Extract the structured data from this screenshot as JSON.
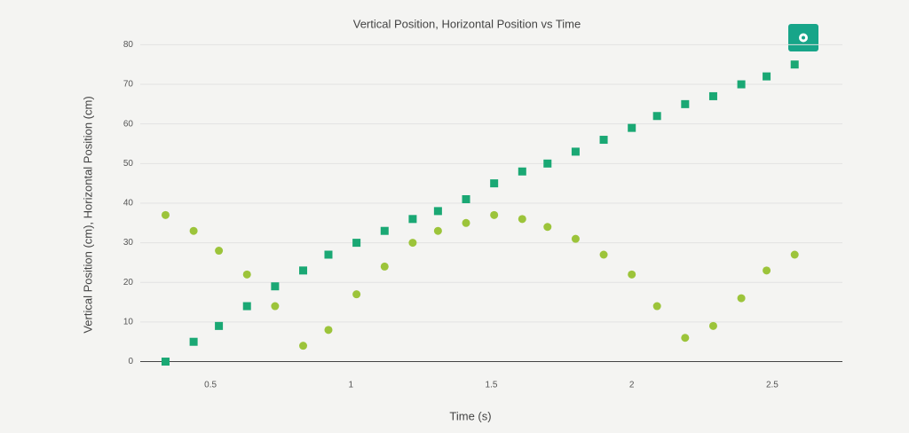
{
  "chart_data": {
    "type": "scatter",
    "title": "Vertical Position, Horizontal Position vs Time",
    "x_label": "Time (s)",
    "y_label": "Vertical Position (cm), Horizontal Position (cm)",
    "x": [
      0.34,
      0.44,
      0.53,
      0.63,
      0.73,
      0.83,
      0.92,
      1.02,
      1.12,
      1.22,
      1.31,
      1.41,
      1.51,
      1.61,
      1.7,
      1.8,
      1.9,
      2.0,
      2.09,
      2.19,
      2.29,
      2.39,
      2.48,
      2.58
    ],
    "series": [
      {
        "color": "#1aa874",
        "marker": "square",
        "values": [
          0,
          5,
          9,
          14,
          19,
          23,
          27,
          30,
          33,
          36,
          38,
          41,
          45,
          48,
          50,
          53,
          56,
          59,
          62,
          65,
          67,
          70,
          72,
          75
        ]
      },
      {
        "color": "#9cc43a",
        "marker": "circle",
        "values": [
          37,
          33,
          28,
          22,
          14,
          4,
          8,
          17,
          24,
          30,
          33,
          35,
          37,
          36,
          34,
          31,
          27,
          22,
          14,
          6,
          9,
          16,
          23,
          27
        ]
      }
    ],
    "xlim": [
      0.25,
      2.75
    ],
    "ylim": [
      -1,
      83
    ],
    "xticks": [
      0.5,
      1,
      1.5,
      2,
      2.5
    ],
    "yticks": [
      0,
      10,
      20,
      30,
      40,
      50,
      60,
      70,
      80
    ],
    "grid": true
  }
}
